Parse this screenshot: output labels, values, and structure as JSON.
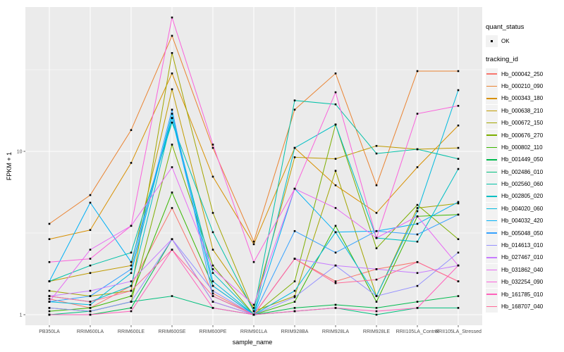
{
  "legend": {
    "quant_status_title": "quant_status",
    "quant_status_items": [
      {
        "label": "OK",
        "shape": "black-point"
      }
    ],
    "tracking_id_title": "tracking_id"
  },
  "colors": {
    "panel_bg": "#EBEBEB",
    "gridline": "#FFFFFF",
    "legend_key_bg": "#F2F2F2",
    "axis_text": "#4D4D4D",
    "point": "#000000"
  },
  "chart_data": {
    "type": "line",
    "title": "",
    "xlabel": "sample_name",
    "ylabel": "FPKM + 1",
    "y_scale": "log10",
    "ylim": [
      0.87,
      78
    ],
    "y_major_ticks": [
      1,
      10
    ],
    "y_minor_gridlines": [
      3.162,
      31.62
    ],
    "grid": true,
    "legend_position": "right",
    "point_marker": "small black square (quant_status = OK)",
    "categories": [
      "PB350LA",
      "RRIM600LA",
      "RRIM600LE",
      "RRIM600SE",
      "RRIM600PE",
      "RRIM901LA",
      "RRIM928BA",
      "RRIM928LA",
      "RRIM928LE",
      "RRII105LA_Control",
      "RRII105LA_Stressed"
    ],
    "series": [
      {
        "name": "Hb_000042_250",
        "color": "#F8766D",
        "values": [
          1.25,
          1.1,
          1.5,
          4.5,
          1.35,
          1.0,
          2.2,
          1.6,
          1.9,
          2.1,
          1.6
        ]
      },
      {
        "name": "Hb_000210_090",
        "color": "#EA8331",
        "values": [
          3.6,
          5.4,
          13.5,
          51,
          10.5,
          2.8,
          18,
          30,
          6.2,
          31,
          31
        ]
      },
      {
        "name": "Hb_000343_180",
        "color": "#D89000",
        "values": [
          2.9,
          3.3,
          8.5,
          30,
          7.0,
          2.7,
          10.5,
          6.2,
          4.2,
          8.0,
          14.4
        ]
      },
      {
        "name": "Hb_000638_210",
        "color": "#C09B00",
        "values": [
          1.6,
          1.8,
          2.0,
          24,
          2.5,
          1.1,
          9.2,
          9.0,
          10.8,
          10.3,
          10.5
        ]
      },
      {
        "name": "Hb_000672_150",
        "color": "#A3A500",
        "values": [
          1.4,
          1.3,
          1.4,
          40,
          4.2,
          1.05,
          1.3,
          7.6,
          1.3,
          4.5,
          4.8
        ]
      },
      {
        "name": "Hb_000676_270",
        "color": "#7CAE00",
        "values": [
          1.1,
          1.05,
          1.2,
          11,
          2.0,
          1.0,
          1.6,
          14.6,
          2.55,
          4.7,
          2.9
        ]
      },
      {
        "name": "Hb_000802_110",
        "color": "#39B600",
        "values": [
          1.05,
          1.1,
          1.3,
          5.6,
          1.5,
          1.0,
          1.2,
          3.5,
          1.2,
          4.0,
          4.1
        ]
      },
      {
        "name": "Hb_001449_050",
        "color": "#00BB4E",
        "values": [
          1.0,
          1.0,
          1.1,
          2.9,
          1.2,
          1.0,
          1.1,
          1.15,
          1.1,
          1.2,
          1.3
        ]
      },
      {
        "name": "Hb_002486_010",
        "color": "#00BF7D",
        "values": [
          1.0,
          1.05,
          1.2,
          1.3,
          1.1,
          1.0,
          1.05,
          1.1,
          1.0,
          1.1,
          1.1
        ]
      },
      {
        "name": "Hb_002560_060",
        "color": "#00C1A7",
        "values": [
          1.6,
          2.0,
          2.4,
          15,
          3.2,
          1.05,
          20.5,
          19.4,
          9.7,
          10.3,
          9.0
        ]
      },
      {
        "name": "Hb_002805_020",
        "color": "#00BFC4",
        "values": [
          1.3,
          1.2,
          1.5,
          16,
          1.8,
          1.0,
          10.5,
          14.6,
          2.95,
          2.8,
          7.8
        ]
      },
      {
        "name": "Hb_004020_060",
        "color": "#00BADE",
        "values": [
          1.2,
          1.15,
          1.8,
          17,
          1.6,
          1.0,
          1.4,
          3.2,
          1.3,
          4.3,
          23.7
        ]
      },
      {
        "name": "Hb_004032_420",
        "color": "#00B0F6",
        "values": [
          1.6,
          4.85,
          2.1,
          16,
          1.5,
          1.0,
          5.9,
          3.2,
          3.25,
          3.6,
          4.9
        ]
      },
      {
        "name": "Hb_005048_050",
        "color": "#35A2FF",
        "values": [
          1.2,
          1.3,
          1.9,
          18,
          1.3,
          1.0,
          3.25,
          2.4,
          3.25,
          3.1,
          4.1
        ]
      },
      {
        "name": "Hb_014613_010",
        "color": "#9590FF",
        "values": [
          1.1,
          1.05,
          1.2,
          2.9,
          1.4,
          1.0,
          1.28,
          2.0,
          1.3,
          1.5,
          2.4
        ]
      },
      {
        "name": "Hb_027467_010",
        "color": "#C77CFF",
        "values": [
          1.3,
          1.4,
          1.6,
          2.9,
          1.2,
          1.0,
          2.2,
          2.0,
          1.9,
          1.8,
          2.0
        ]
      },
      {
        "name": "Hb_031862_040",
        "color": "#E76BF3",
        "values": [
          1.2,
          2.5,
          3.5,
          8.0,
          1.9,
          1.15,
          5.9,
          4.5,
          2.95,
          4.0,
          2.0
        ]
      },
      {
        "name": "Hb_032254_090",
        "color": "#FA62DB",
        "values": [
          2.1,
          2.2,
          3.5,
          66,
          11,
          2.1,
          5.9,
          23,
          2.95,
          17,
          19
        ]
      },
      {
        "name": "Hb_161785_010",
        "color": "#FF62BC",
        "values": [
          1.0,
          1.0,
          1.05,
          2.5,
          1.1,
          1.0,
          1.05,
          1.1,
          1.05,
          1.1,
          2.0
        ]
      },
      {
        "name": "Hb_168707_040",
        "color": "#FF6A98",
        "values": [
          1.3,
          1.2,
          1.4,
          2.5,
          1.3,
          1.0,
          2.2,
          1.56,
          1.64,
          2.1,
          1.6
        ]
      }
    ]
  }
}
